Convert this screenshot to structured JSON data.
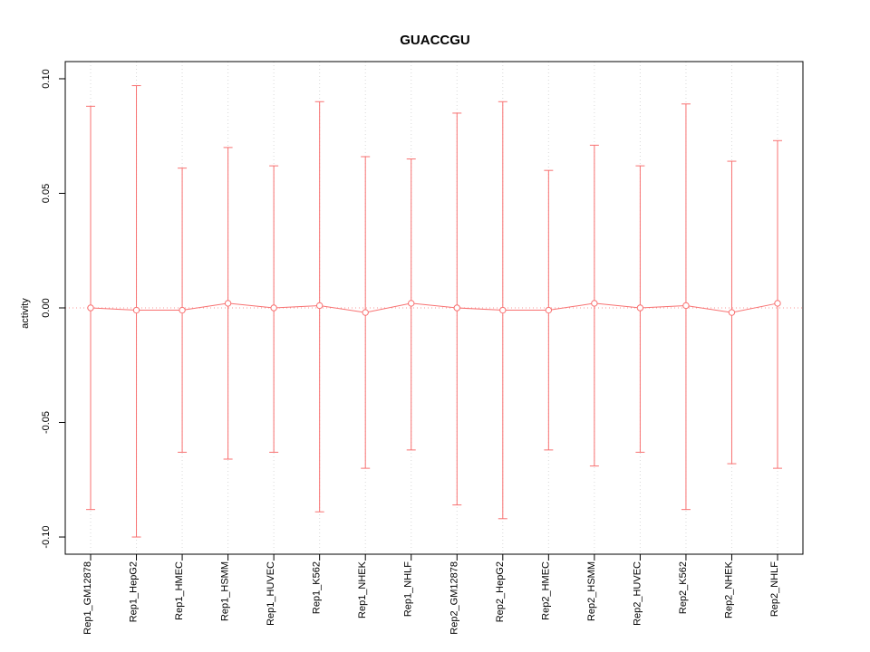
{
  "chart_data": {
    "type": "line",
    "title": "GUACCGU",
    "xlabel": "",
    "ylabel": "activity",
    "ylim": [
      -0.1075,
      0.1075
    ],
    "yticks": [
      -0.1,
      -0.05,
      0.0,
      0.05,
      0.1
    ],
    "ytick_labels": [
      "-0.10",
      "-0.05",
      "0.00",
      "0.05",
      "0.10"
    ],
    "grid": "vertical-dotted",
    "legend_position": "none",
    "categories": [
      "Rep1_GM12878",
      "Rep1_HepG2",
      "Rep1_HMEC",
      "Rep1_HSMM",
      "Rep1_HUVEC",
      "Rep1_K562",
      "Rep1_NHEK",
      "Rep1_NHLF",
      "Rep2_GM12878",
      "Rep2_HepG2",
      "Rep2_HMEC",
      "Rep2_HSMM",
      "Rep2_HUVEC",
      "Rep2_K562",
      "Rep2_NHEK",
      "Rep2_NHLF"
    ],
    "series": [
      {
        "name": "activity",
        "values": [
          0.0,
          -0.001,
          -0.001,
          0.002,
          0.0,
          0.001,
          -0.002,
          0.002,
          0.0,
          -0.001,
          -0.001,
          0.002,
          0.0,
          0.001,
          -0.002,
          0.002
        ],
        "upper": [
          0.088,
          0.097,
          0.061,
          0.07,
          0.062,
          0.09,
          0.066,
          0.065,
          0.085,
          0.09,
          0.06,
          0.071,
          0.062,
          0.089,
          0.064,
          0.073
        ],
        "lower": [
          -0.088,
          -0.1,
          -0.063,
          -0.066,
          -0.063,
          -0.089,
          -0.07,
          -0.062,
          -0.086,
          -0.092,
          -0.062,
          -0.069,
          -0.063,
          -0.088,
          -0.068,
          -0.07
        ]
      }
    ],
    "colors": {
      "series": "#f87171",
      "marker_fill": "#ffffff",
      "grid": "#d9d9d9",
      "axis": "#000000",
      "background": "#ffffff"
    }
  }
}
